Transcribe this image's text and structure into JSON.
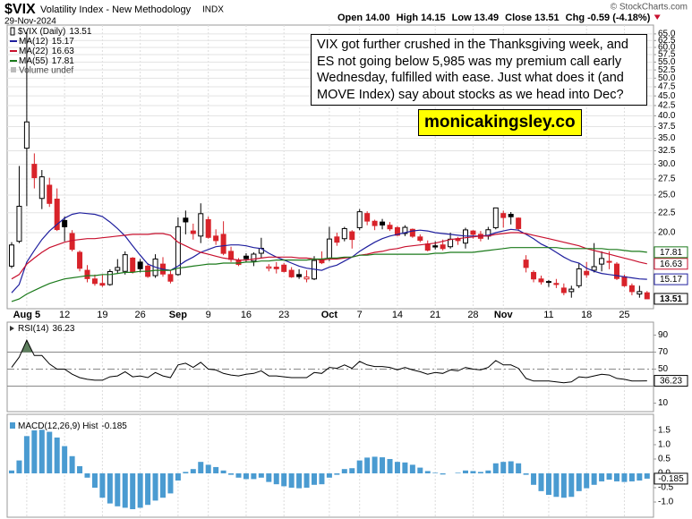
{
  "chart_data": [
    {
      "type": "candlestick",
      "title": "$VIX",
      "subtitle": "Volatility Index - New Methodology",
      "exchange": "INDX",
      "date": "29-Nov-2024",
      "source": "© StockCharts.com",
      "quote": [
        {
          "label": "Open",
          "value": "14.00"
        },
        {
          "label": "High",
          "value": "14.15"
        },
        {
          "label": "Low",
          "value": "13.49"
        },
        {
          "label": "Close",
          "value": "13.51"
        },
        {
          "label": "Chg",
          "value": "-0.59 (-4.18%)"
        }
      ],
      "price_label": "$VIX (Daily)",
      "volume_label": "Volume undef",
      "annotation": "VIX got further crushed in the Thanksgiving week, and ES not going below 5,985 was my premium call early Wednesday, fulfilled with ease. Just what does it (and MOVE Index) say about stocks as we head into Dec?",
      "watermark": "monicakingsley.co",
      "categories": [
        null,
        null,
        "Aug 5",
        null,
        null,
        null,
        null,
        "12",
        null,
        null,
        null,
        null,
        "19",
        null,
        null,
        null,
        null,
        "26",
        null,
        null,
        null,
        null,
        "Sep",
        null,
        null,
        null,
        "9",
        null,
        null,
        null,
        null,
        "16",
        null,
        null,
        null,
        null,
        "23",
        null,
        null,
        null,
        null,
        null,
        "Oct",
        null,
        null,
        null,
        "7",
        null,
        null,
        null,
        null,
        "14",
        null,
        null,
        null,
        null,
        "21",
        null,
        null,
        null,
        null,
        "28",
        null,
        null,
        null,
        "Nov",
        null,
        null,
        null,
        null,
        null,
        "11",
        null,
        null,
        null,
        null,
        "18",
        null,
        null,
        null,
        null,
        "25",
        null,
        null,
        null
      ],
      "open": [
        16.4,
        19.0,
        33.0,
        30.0,
        24.5,
        26.5,
        24.4,
        21.5,
        19.9,
        17.8,
        16.0,
        15.2,
        14.8,
        14.7,
        16.0,
        15.9,
        17.2,
        16.8,
        16.4,
        15.5,
        16.6,
        15.6,
        15.6,
        21.8,
        20.2,
        19.6,
        21.6,
        19.6,
        19.8,
        17.9,
        17.0,
        17.4,
        16.9,
        17.7,
        16.2,
        16.3,
        16.5,
        16.0,
        15.6,
        15.2,
        15.2,
        17.0,
        17.2,
        19.5,
        19.3,
        20.1,
        20.6,
        22.4,
        21.4,
        21.3,
        20.9,
        20.6,
        19.9,
        20.4,
        19.5,
        18.7,
        18.5,
        18.6,
        18.4,
        19.3,
        18.8,
        20.2,
        19.8,
        19.6,
        20.6,
        22.4,
        22.3,
        21.8,
        17.0,
        15.8,
        15.2,
        14.9,
        14.8,
        14.4,
        14.1,
        14.6,
        15.9,
        16.0,
        16.6,
        16.8,
        16.6,
        15.4,
        14.6,
        13.9,
        14.0
      ],
      "high": [
        18.9,
        29.7,
        65.7,
        32.0,
        29.0,
        27.7,
        26.0,
        22.0,
        20.3,
        18.0,
        16.5,
        15.6,
        15.6,
        16.1,
        17.1,
        17.9,
        17.3,
        17.1,
        16.7,
        17.6,
        17.3,
        16.0,
        21.9,
        22.8,
        21.1,
        23.8,
        22.0,
        20.4,
        21.4,
        18.4,
        17.2,
        17.7,
        17.8,
        19.4,
        16.6,
        16.8,
        16.7,
        16.3,
        16.1,
        16.0,
        17.4,
        17.9,
        20.7,
        20.0,
        20.7,
        20.3,
        23.0,
        22.7,
        21.6,
        21.7,
        21.3,
        20.8,
        20.9,
        20.5,
        19.8,
        19.1,
        19.0,
        19.2,
        20.0,
        19.5,
        20.6,
        20.3,
        20.2,
        20.7,
        23.2,
        22.8,
        22.6,
        21.9,
        17.5,
        16.0,
        15.5,
        15.1,
        15.2,
        14.8,
        14.6,
        16.7,
        16.8,
        18.8,
        17.9,
        17.9,
        16.8,
        15.6,
        14.8,
        14.6,
        14.15
      ],
      "low": [
        16.2,
        18.8,
        23.4,
        26.0,
        23.0,
        23.3,
        20.2,
        19.0,
        17.9,
        15.9,
        14.9,
        14.6,
        14.5,
        14.6,
        15.7,
        15.6,
        15.7,
        15.8,
        15.3,
        15.3,
        15.4,
        14.8,
        15.5,
        19.8,
        19.2,
        18.8,
        19.3,
        18.6,
        17.5,
        16.8,
        16.4,
        16.8,
        16.4,
        17.2,
        15.9,
        15.7,
        15.8,
        15.3,
        15.2,
        14.9,
        15.1,
        16.6,
        16.9,
        18.5,
        19.0,
        18.2,
        20.3,
        20.9,
        20.3,
        20.4,
        20.2,
        19.6,
        19.6,
        19.4,
        18.9,
        17.9,
        18.1,
        18.0,
        18.2,
        18.6,
        18.2,
        19.3,
        19.0,
        19.2,
        20.4,
        20.6,
        21.0,
        20.2,
        15.8,
        14.9,
        14.7,
        14.5,
        14.4,
        13.8,
        13.6,
        14.4,
        15.3,
        15.8,
        15.9,
        16.1,
        15.1,
        14.5,
        13.8,
        13.6,
        13.49
      ],
      "close": [
        18.59,
        23.39,
        38.57,
        27.71,
        27.85,
        23.79,
        20.37,
        20.71,
        18.12,
        16.19,
        15.23,
        14.8,
        14.65,
        15.88,
        16.27,
        17.55,
        15.86,
        16.15,
        15.43,
        17.11,
        15.65,
        15.0,
        20.72,
        21.32,
        19.9,
        22.38,
        19.45,
        19.08,
        17.69,
        17.07,
        16.56,
        17.14,
        17.61,
        18.23,
        16.33,
        16.15,
        15.89,
        15.39,
        15.41,
        15.37,
        16.96,
        16.73,
        19.26,
        18.9,
        20.49,
        19.21,
        22.64,
        21.42,
        20.86,
        20.93,
        20.46,
        19.7,
        20.64,
        19.58,
        19.11,
        18.03,
        18.37,
        18.2,
        19.24,
        19.08,
        20.33,
        19.8,
        19.34,
        20.35,
        23.16,
        21.88,
        21.98,
        20.49,
        16.27,
        15.2,
        14.94,
        14.97,
        14.71,
        14.02,
        14.31,
        16.14,
        15.58,
        16.35,
        17.16,
        16.87,
        15.24,
        14.6,
        14.1,
        14.1,
        13.51
      ],
      "up_color": "#000000",
      "down_color": "#d8232a",
      "series": [
        {
          "name": "MA(12)",
          "color": "#1f1f9e",
          "values": [
            14.0,
            14.7,
            16.8,
            18.0,
            19.2,
            20.2,
            21.0,
            21.8,
            22.3,
            22.5,
            22.4,
            22.3,
            22.0,
            21.3,
            20.5,
            19.6,
            18.5,
            17.5,
            16.6,
            16.3,
            16.1,
            16.0,
            16.4,
            16.9,
            17.3,
            17.8,
            18.1,
            18.4,
            18.5,
            18.6,
            18.6,
            18.5,
            18.3,
            18.2,
            17.7,
            17.3,
            17.0,
            16.7,
            16.4,
            16.2,
            16.1,
            16.0,
            16.3,
            16.5,
            16.9,
            17.3,
            17.9,
            18.4,
            18.9,
            19.3,
            19.6,
            19.8,
            20.0,
            20.2,
            20.3,
            20.2,
            20.0,
            19.9,
            19.8,
            19.7,
            19.6,
            19.6,
            19.6,
            19.7,
            20.0,
            20.2,
            20.4,
            20.3,
            19.8,
            19.3,
            18.7,
            18.3,
            17.8,
            17.3,
            16.9,
            16.7,
            16.2,
            15.9,
            15.7,
            15.6,
            15.5,
            15.4,
            15.3,
            15.2,
            15.17
          ]
        },
        {
          "name": "MA(22)",
          "color": "#c8102e",
          "values": [
            15.2,
            15.6,
            16.6,
            17.2,
            17.8,
            18.3,
            18.6,
            18.9,
            19.1,
            19.2,
            19.3,
            19.3,
            19.4,
            19.5,
            19.6,
            19.7,
            19.8,
            19.8,
            19.8,
            19.9,
            19.9,
            19.7,
            18.9,
            18.5,
            18.1,
            17.8,
            17.6,
            17.4,
            17.2,
            17.1,
            17.0,
            17.0,
            17.1,
            17.2,
            17.3,
            17.3,
            17.3,
            17.3,
            17.2,
            17.2,
            17.1,
            17.0,
            17.1,
            17.1,
            17.2,
            17.3,
            17.5,
            17.6,
            17.8,
            17.9,
            18.1,
            18.2,
            18.4,
            18.5,
            18.6,
            18.7,
            18.8,
            19.0,
            19.2,
            19.3,
            19.4,
            19.5,
            19.6,
            19.6,
            19.8,
            19.9,
            20.0,
            20.0,
            19.9,
            19.7,
            19.5,
            19.3,
            19.1,
            18.9,
            18.7,
            18.5,
            18.2,
            18.0,
            17.8,
            17.6,
            17.4,
            17.2,
            17.0,
            16.8,
            16.63
          ]
        },
        {
          "name": "MA(55)",
          "color": "#1b7a1b",
          "values": [
            13.3,
            13.5,
            13.9,
            14.2,
            14.5,
            14.8,
            15.0,
            15.2,
            15.3,
            15.4,
            15.5,
            15.5,
            15.6,
            15.6,
            15.7,
            15.8,
            15.8,
            15.9,
            15.9,
            16.0,
            16.0,
            16.0,
            16.2,
            16.3,
            16.4,
            16.5,
            16.6,
            16.6,
            16.7,
            16.7,
            16.7,
            16.8,
            16.8,
            16.9,
            16.9,
            17.0,
            17.0,
            17.0,
            17.0,
            17.0,
            17.1,
            17.1,
            17.2,
            17.2,
            17.3,
            17.3,
            17.5,
            17.5,
            17.6,
            17.6,
            17.6,
            17.6,
            17.6,
            17.6,
            17.6,
            17.6,
            17.7,
            17.7,
            17.8,
            17.8,
            17.8,
            17.8,
            17.9,
            18.0,
            18.1,
            18.2,
            18.3,
            18.3,
            18.3,
            18.3,
            18.3,
            18.3,
            18.3,
            18.2,
            18.2,
            18.2,
            18.2,
            18.2,
            18.2,
            18.1,
            18.1,
            18.0,
            17.9,
            17.9,
            17.81
          ]
        }
      ],
      "log_scale": true,
      "grid": true,
      "ylim": [
        12.74,
        68.5
      ],
      "yticks": [
        {
          "value": 65,
          "label": "65.0"
        },
        62.5,
        {
          "value": 60,
          "label": "60.0"
        },
        57.5,
        {
          "value": 55,
          "label": "55.0"
        },
        52.5,
        {
          "value": 50,
          "label": "50.0"
        },
        47.5,
        {
          "value": 45,
          "label": "45.0"
        },
        42.5,
        {
          "value": 40,
          "label": "40.0"
        },
        37.5,
        {
          "value": 35,
          "label": "35.0"
        },
        32.5,
        {
          "value": 30,
          "label": "30.0"
        },
        27.5,
        {
          "value": 25,
          "label": "25.0"
        },
        22.5,
        {
          "value": 20,
          "label": "20.0"
        }
      ]
    },
    {
      "type": "line",
      "name": "RSI(14)",
      "color": "#000000",
      "overbought_color": "#5e7f5e",
      "values": [
        52,
        64,
        84,
        66,
        66,
        56,
        50,
        50,
        44,
        40,
        38,
        37,
        37,
        41,
        42,
        47,
        41,
        42,
        40,
        46,
        42,
        40,
        55,
        57,
        52,
        58,
        50,
        49,
        45,
        43,
        42,
        44,
        45,
        48,
        42,
        42,
        41,
        40,
        40,
        40,
        46,
        45,
        52,
        51,
        55,
        51,
        59,
        55,
        53,
        53,
        52,
        49,
        52,
        49,
        47,
        44,
        46,
        45,
        49,
        48,
        52,
        50,
        49,
        52,
        60,
        55,
        55,
        51,
        39,
        36,
        36,
        36,
        35,
        34,
        35,
        41,
        40,
        42,
        44,
        43,
        39,
        38,
        36,
        36,
        36.23
      ],
      "ref_lines": [
        70,
        50,
        30
      ],
      "ylim": [
        0,
        100
      ],
      "yticks": [
        90,
        70,
        50,
        10
      ]
    },
    {
      "type": "bar",
      "name": "MACD(12,26,9) Hist",
      "color": "#4a9bd1",
      "values": [
        0.1,
        0.45,
        1.3,
        1.5,
        1.52,
        1.45,
        1.25,
        0.95,
        0.6,
        0.25,
        -0.15,
        -0.5,
        -0.85,
        -1.05,
        -1.15,
        -1.2,
        -1.25,
        -1.2,
        -1.1,
        -0.95,
        -0.85,
        -0.7,
        -0.25,
        0.05,
        0.15,
        0.4,
        0.3,
        0.22,
        0.1,
        -0.05,
        -0.15,
        -0.2,
        -0.2,
        -0.15,
        -0.3,
        -0.38,
        -0.45,
        -0.5,
        -0.52,
        -0.5,
        -0.4,
        -0.38,
        -0.15,
        -0.05,
        0.15,
        0.18,
        0.45,
        0.55,
        0.58,
        0.56,
        0.5,
        0.4,
        0.38,
        0.3,
        0.2,
        0.08,
        0.02,
        -0.04,
        0.0,
        0.02,
        0.1,
        0.08,
        0.05,
        0.1,
        0.35,
        0.4,
        0.42,
        0.35,
        -0.05,
        -0.4,
        -0.62,
        -0.75,
        -0.82,
        -0.85,
        -0.82,
        -0.62,
        -0.52,
        -0.4,
        -0.28,
        -0.22,
        -0.28,
        -0.3,
        -0.28,
        -0.25,
        -0.185
      ],
      "ylim": [
        -1.53,
        2.06
      ],
      "yticks": [
        1.5,
        {
          "value": 1,
          "label": "1.0"
        },
        0.5,
        {
          "value": 0,
          "label": "0.0"
        },
        -0.5,
        {
          "value": -1,
          "label": "-1.0"
        }
      ]
    }
  ]
}
